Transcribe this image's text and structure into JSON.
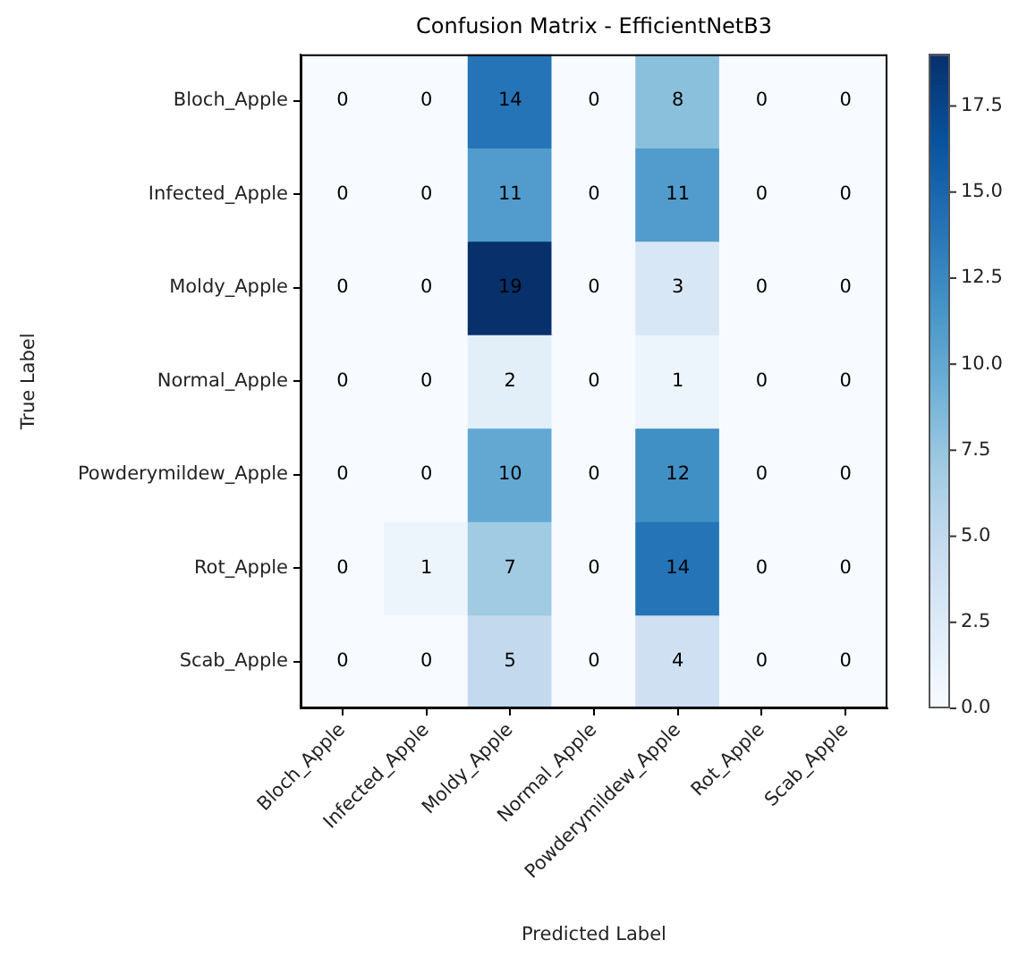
{
  "chart_data": {
    "type": "heatmap",
    "title": "Confusion Matrix - EfficientNetB3",
    "xlabel": "Predicted Label",
    "ylabel": "True Label",
    "categories": [
      "Bloch_Apple",
      "Infected_Apple",
      "Moldy_Apple",
      "Normal_Apple",
      "Powderymildew_Apple",
      "Rot_Apple",
      "Scab_Apple"
    ],
    "y_categories": [
      "Bloch_Apple",
      "Infected_Apple",
      "Moldy_Apple",
      "Normal_Apple",
      "Powderymildew_Apple",
      "Rot_Apple",
      "Scab_Apple"
    ],
    "cells": [
      [
        0,
        0,
        14,
        0,
        8,
        0,
        0
      ],
      [
        0,
        0,
        11,
        0,
        11,
        0,
        0
      ],
      [
        0,
        0,
        19,
        0,
        3,
        0,
        0
      ],
      [
        0,
        0,
        2,
        0,
        1,
        0,
        0
      ],
      [
        0,
        0,
        10,
        0,
        12,
        0,
        0
      ],
      [
        0,
        1,
        7,
        0,
        14,
        0,
        0
      ],
      [
        0,
        0,
        5,
        0,
        4,
        0,
        0
      ]
    ],
    "clim": [
      0,
      19
    ],
    "cticks": [
      {
        "value": 0,
        "label": "0.0"
      },
      2.5,
      {
        "value": 5,
        "label": "5.0"
      },
      7.5,
      {
        "value": 10,
        "label": "10.0"
      },
      12.5,
      {
        "value": 15,
        "label": "15.0"
      },
      17.5
    ],
    "data_labels": true
  }
}
